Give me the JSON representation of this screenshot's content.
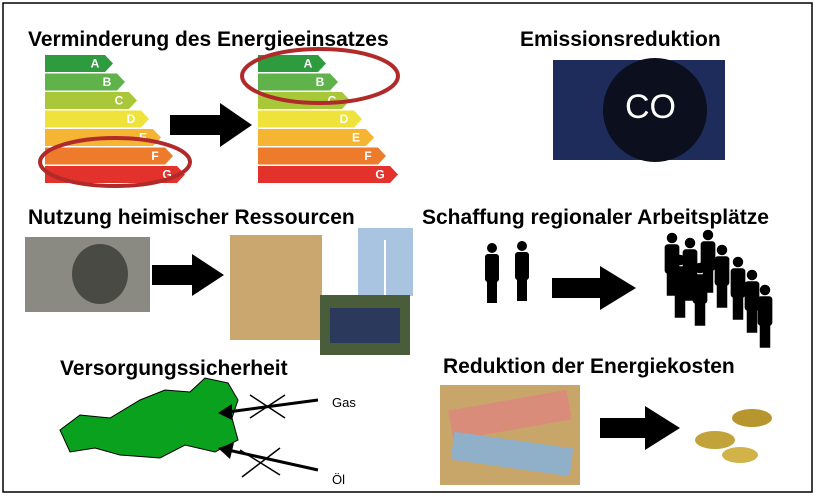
{
  "headings": [
    "Verminderung des Energieeinsatzes",
    "Emissionsreduktion",
    "Nutzung heimischer Ressourcen",
    "Schaffung regionaler Arbeitsplätze",
    "Versorgungssicherheit",
    "Reduktion der Energiekosten"
  ],
  "energy_classes": [
    "A",
    "B",
    "C",
    "D",
    "E",
    "F",
    "G"
  ],
  "map_labels": [
    "Gas",
    "Öl"
  ]
}
